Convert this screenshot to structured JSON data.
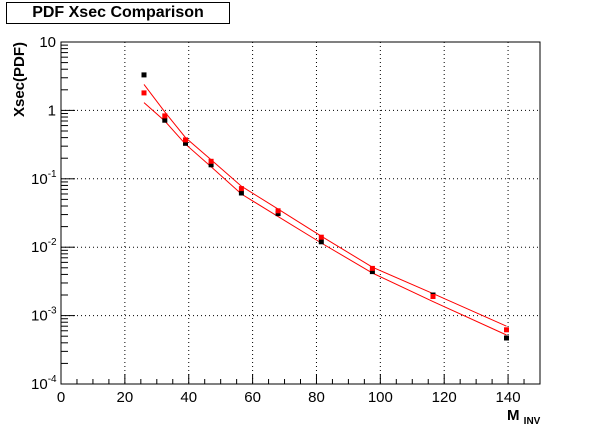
{
  "chart_data": {
    "type": "scatter",
    "title": "PDF Xsec Comparison",
    "xlabel": {
      "main": "M",
      "sub": "INV"
    },
    "ylabel": "Xsec(PDF)",
    "xlim": [
      0,
      150
    ],
    "ylim": [
      0.0001,
      10
    ],
    "yscale": "log",
    "grid": true,
    "x_ticks": [
      {
        "v": 0,
        "label": "0"
      },
      {
        "v": 20,
        "label": "20"
      },
      {
        "v": 40,
        "label": "40"
      },
      {
        "v": 60,
        "label": "60"
      },
      {
        "v": 80,
        "label": "80"
      },
      {
        "v": 100,
        "label": "100"
      },
      {
        "v": 120,
        "label": "120"
      },
      {
        "v": 140,
        "label": "140"
      }
    ],
    "y_ticks": [
      {
        "v": 10,
        "label": "10",
        "base": "",
        "exp": ""
      },
      {
        "v": 1,
        "label": "1",
        "base": "",
        "exp": ""
      },
      {
        "v": 0.1,
        "label": "",
        "base": "10",
        "exp": "-1"
      },
      {
        "v": 0.01,
        "label": "",
        "base": "10",
        "exp": "-2"
      },
      {
        "v": 0.001,
        "label": "",
        "base": "10",
        "exp": "-3"
      },
      {
        "v": 0.0001,
        "label": "",
        "base": "10",
        "exp": "-4"
      }
    ],
    "series": [
      {
        "marker_color": "#000000",
        "x": [
          26,
          32.5,
          39,
          47,
          56.5,
          68,
          81.5,
          97.5,
          116.5,
          139.5
        ],
        "y": [
          3.3,
          0.72,
          0.33,
          0.16,
          0.062,
          0.031,
          0.012,
          0.0044,
          0.002,
          0.00047
        ]
      },
      {
        "marker_color": "#ff0000",
        "x": [
          26,
          32.5,
          39,
          47,
          56.5,
          68,
          81.5,
          97.5,
          116.5,
          139.5
        ],
        "y": [
          1.8,
          0.83,
          0.37,
          0.18,
          0.072,
          0.034,
          0.014,
          0.0049,
          0.0019,
          0.00062
        ]
      }
    ],
    "band": {
      "color": "#ff0000",
      "upper": {
        "x": [
          26,
          32.5,
          39,
          47,
          56.5,
          68,
          81.5,
          97.5,
          116.5,
          139.5
        ],
        "y": [
          2.4,
          0.95,
          0.4,
          0.19,
          0.078,
          0.036,
          0.0145,
          0.0051,
          0.0021,
          0.0007
        ]
      },
      "lower": {
        "x": [
          26,
          32.5,
          39,
          47,
          56.5,
          68,
          81.5,
          97.5,
          116.5,
          139.5
        ],
        "y": [
          1.3,
          0.7,
          0.32,
          0.15,
          0.06,
          0.028,
          0.0115,
          0.0042,
          0.0016,
          0.00052
        ]
      }
    }
  }
}
